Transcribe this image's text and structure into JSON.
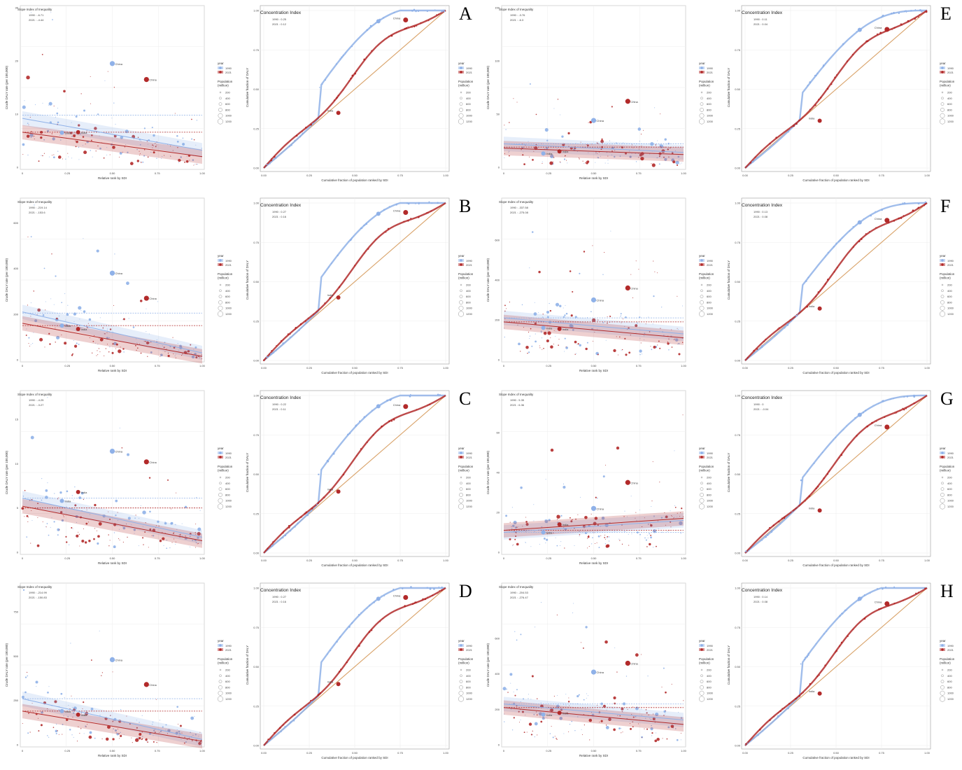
{
  "legend": {
    "year_title": "year",
    "years": [
      "1990",
      "2021"
    ],
    "pop_title": "Population (million)",
    "pop_values": [
      "200",
      "400",
      "600",
      "800",
      "1000",
      "1200"
    ]
  },
  "colors": {
    "y1990": "#8fb1e8",
    "y2021": "#b22a2a",
    "diag": "#d9a36a"
  },
  "sii_common": {
    "title": "Slope Index of Inequality",
    "xlabel": "Relative rank by SDI",
    "ylabel": "Crude DALY rate (per 100,000)",
    "xticks": [
      "0",
      "0.25",
      "0.50",
      "0.75",
      "1.00"
    ]
  },
  "ci_common": {
    "title": "Concentration Index",
    "xlabel": "Cumulative fraction of population ranked by SDI",
    "ylabel": "Cumulative fraction of DALY",
    "xticks": [
      "0.00",
      "0.25",
      "0.50",
      "0.75",
      "1.00"
    ],
    "yticks": [
      "0.00",
      "0.25",
      "0.50",
      "0.75",
      "1.00"
    ]
  },
  "chart_data": [
    {
      "type": "scatter",
      "letter": "A",
      "kind": "sii",
      "title": "Slope Index of Inequality",
      "line1990": "1990 : -6.71",
      "line2021": "2021 : -4.44",
      "yticks": [
        "0",
        "10",
        "20",
        "30"
      ],
      "ymax": 30,
      "fit1990": [
        9.2,
        3.2
      ],
      "fit2021": [
        6.6,
        2.0
      ],
      "ref1990": 9.8,
      "ref2021": 6.6,
      "ann1990": [
        {
          "x": 0.22,
          "y": 6.5,
          "label": "India"
        },
        {
          "x": 0.5,
          "y": 19.5,
          "label": "China"
        }
      ],
      "ann2021": [
        {
          "x": 0.31,
          "y": 6.6,
          "label": "India"
        },
        {
          "x": 0.69,
          "y": 16.5,
          "label": "China"
        }
      ]
    },
    {
      "type": "line",
      "letter": "A",
      "kind": "ci",
      "title": "Concentration Index",
      "line1990": "1990 : 0.25",
      "line2021": "2021 : 0.12",
      "china": {
        "x": 0.78,
        "y": 0.94,
        "label": "China"
      },
      "india": {
        "x": 0.41,
        "y": 0.35,
        "label": "India"
      }
    },
    {
      "type": "scatter",
      "letter": "E",
      "kind": "sii",
      "title": "Slope Index of Inequality",
      "line1990": "1990 : -3.76",
      "line2021": "2021 : -6.3",
      "yticks": [
        "0",
        "50",
        "100",
        "150"
      ],
      "ymax": 150,
      "fit1990": [
        22,
        14
      ],
      "fit2021": [
        18,
        12
      ],
      "ref1990": 22,
      "ref2021": 19,
      "ann1990": [
        {
          "x": 0.22,
          "y": 13,
          "label": "India"
        },
        {
          "x": 0.5,
          "y": 44,
          "label": "China"
        }
      ],
      "ann2021": [
        {
          "x": 0.31,
          "y": 15,
          "label": "India"
        },
        {
          "x": 0.69,
          "y": 62,
          "label": "China"
        }
      ]
    },
    {
      "type": "line",
      "letter": "E",
      "kind": "ci",
      "title": "Concentration Index",
      "line1990": "1990 : 0.11",
      "line2021": "2021 : 0.04",
      "china": {
        "x": 0.78,
        "y": 0.88,
        "label": "China"
      },
      "india": {
        "x": 0.41,
        "y": 0.3,
        "label": "India"
      }
    },
    {
      "type": "scatter",
      "letter": "B",
      "kind": "sii",
      "title": "Slope Index of Inequality",
      "line1990": "1990 : -219.14",
      "line2021": "2021 : -153.6",
      "yticks": [
        "0",
        "200",
        "400",
        "600"
      ],
      "ymax": 700,
      "fit1990": [
        210,
        30
      ],
      "fit2021": [
        160,
        15
      ],
      "ref1990": 205,
      "ref2021": 150,
      "ann1990": [
        {
          "x": 0.22,
          "y": 150,
          "label": "India"
        },
        {
          "x": 0.5,
          "y": 380,
          "label": "China"
        }
      ],
      "ann2021": [
        {
          "x": 0.31,
          "y": 135,
          "label": "India"
        },
        {
          "x": 0.69,
          "y": 270,
          "label": "China"
        }
      ]
    },
    {
      "type": "line",
      "letter": "B",
      "kind": "ci",
      "title": "Concentration Index",
      "line1990": "1990 : 0.27",
      "line2021": "2021 : 0.16",
      "china": {
        "x": 0.78,
        "y": 0.94,
        "label": "China"
      },
      "india": {
        "x": 0.41,
        "y": 0.4,
        "label": "India"
      }
    },
    {
      "type": "scatter",
      "letter": "F",
      "kind": "sii",
      "title": "Slope Index of Inequality",
      "line1990": "1990 : -337.58",
      "line2021": "2021 : -275.08",
      "yticks": [
        "0",
        "200",
        "400",
        "600"
      ],
      "ymax": 800,
      "fit1990": [
        210,
        130
      ],
      "fit2021": [
        190,
        110
      ],
      "ref1990": 210,
      "ref2021": 190,
      "ann1990": [
        {
          "x": 0.22,
          "y": 160,
          "label": "India"
        },
        {
          "x": 0.5,
          "y": 300,
          "label": "China"
        }
      ],
      "ann2021": [
        {
          "x": 0.31,
          "y": 155,
          "label": "India"
        },
        {
          "x": 0.69,
          "y": 360,
          "label": "China"
        }
      ]
    },
    {
      "type": "line",
      "letter": "F",
      "kind": "ci",
      "title": "Concentration Index",
      "line1990": "1990 : 0.13",
      "line2021": "2021 : 0.08",
      "china": {
        "x": 0.78,
        "y": 0.89,
        "label": "China"
      },
      "india": {
        "x": 0.41,
        "y": 0.33,
        "label": "India"
      }
    },
    {
      "type": "scatter",
      "letter": "C",
      "kind": "sii",
      "title": "Slope Index of Inequality",
      "line1990": "1990 : -4.25",
      "line2021": "2021 : -3.27",
      "yticks": [
        "0",
        "5",
        "10",
        "15"
      ],
      "ymax": 18,
      "fit1990": [
        6.1,
        1.7
      ],
      "fit2021": [
        5.2,
        1.3
      ],
      "ref1990": 6.1,
      "ref2021": 5.0,
      "ann1990": [
        {
          "x": 0.22,
          "y": 5.8,
          "label": "India"
        },
        {
          "x": 0.5,
          "y": 11.4,
          "label": "China"
        }
      ],
      "ann2021": [
        {
          "x": 0.31,
          "y": 6.8,
          "label": "India"
        },
        {
          "x": 0.69,
          "y": 10.2,
          "label": "China"
        }
      ]
    },
    {
      "type": "line",
      "letter": "C",
      "kind": "ci",
      "title": "Concentration Index",
      "line1990": "1990 : 0.22",
      "line2021": "2021 : 0.11",
      "china": {
        "x": 0.78,
        "y": 0.93,
        "label": "China"
      },
      "india": {
        "x": 0.41,
        "y": 0.39,
        "label": "India"
      }
    },
    {
      "type": "scatter",
      "letter": "G",
      "kind": "sii",
      "title": "Slope Index of Inequality",
      "line1990": "1990 : 5.35",
      "line2021": "2021 : 6.36",
      "yticks": [
        "0",
        "20",
        "40",
        "60"
      ],
      "ymax": 80,
      "fit1990": [
        10,
        16
      ],
      "fit2021": [
        11,
        17
      ],
      "ref1990": 10,
      "ref2021": 11,
      "ann1990": [
        {
          "x": 0.22,
          "y": 10,
          "label": "India"
        },
        {
          "x": 0.5,
          "y": 22,
          "label": "China"
        }
      ],
      "ann2021": [
        {
          "x": 0.31,
          "y": 14,
          "label": "India"
        },
        {
          "x": 0.69,
          "y": 35,
          "label": "China"
        }
      ]
    },
    {
      "type": "line",
      "letter": "G",
      "kind": "ci",
      "title": "Concentration Index",
      "line1990": "1990 : 0",
      "line2021": "2021 : -0.04",
      "china": {
        "x": 0.78,
        "y": 0.8,
        "label": "China"
      },
      "india": {
        "x": 0.41,
        "y": 0.27,
        "label": "India"
      }
    },
    {
      "type": "scatter",
      "letter": "D",
      "kind": "sii",
      "title": "Slope Index of Inequality",
      "line1990": "1990 : -214.99",
      "line2021": "2021 : -150.83",
      "yticks": [
        "0",
        "250",
        "500",
        "750"
      ],
      "ymax": 900,
      "fit1990": [
        260,
        30
      ],
      "fit2021": [
        190,
        20
      ],
      "ref1990": 260,
      "ref2021": 190,
      "ann1990": [
        {
          "x": 0.22,
          "y": 190,
          "label": "India"
        },
        {
          "x": 0.5,
          "y": 480,
          "label": "China"
        }
      ],
      "ann2021": [
        {
          "x": 0.31,
          "y": 170,
          "label": "India"
        },
        {
          "x": 0.69,
          "y": 340,
          "label": "China"
        }
      ]
    },
    {
      "type": "line",
      "letter": "D",
      "kind": "ci",
      "title": "Concentration Index",
      "line1990": "1990 : 0.27",
      "line2021": "2021 : 0.16",
      "china": {
        "x": 0.78,
        "y": 0.94,
        "label": "China"
      },
      "india": {
        "x": 0.41,
        "y": 0.39,
        "label": "India"
      }
    },
    {
      "type": "scatter",
      "letter": "H",
      "kind": "sii",
      "title": "Slope Index of Inequality",
      "line1990": "1990 : -204.53",
      "line2021": "2021 : -276.47",
      "yticks": [
        "0",
        "200",
        "400",
        "600"
      ],
      "ymax": 900,
      "fit1990": [
        230,
        140
      ],
      "fit2021": [
        210,
        115
      ],
      "ref1990": 230,
      "ref2021": 210,
      "ann1990": [
        {
          "x": 0.22,
          "y": 170,
          "label": "India"
        },
        {
          "x": 0.5,
          "y": 410,
          "label": "China"
        }
      ],
      "ann2021": [
        {
          "x": 0.31,
          "y": 180,
          "label": "India"
        },
        {
          "x": 0.69,
          "y": 460,
          "label": "China"
        }
      ]
    },
    {
      "type": "line",
      "letter": "H",
      "kind": "ci",
      "title": "Concentration Index",
      "line1990": "1990 : 0.14",
      "line2021": "2021 : 0.08",
      "china": {
        "x": 0.78,
        "y": 0.9,
        "label": "China"
      },
      "india": {
        "x": 0.41,
        "y": 0.33,
        "label": "India"
      }
    }
  ]
}
